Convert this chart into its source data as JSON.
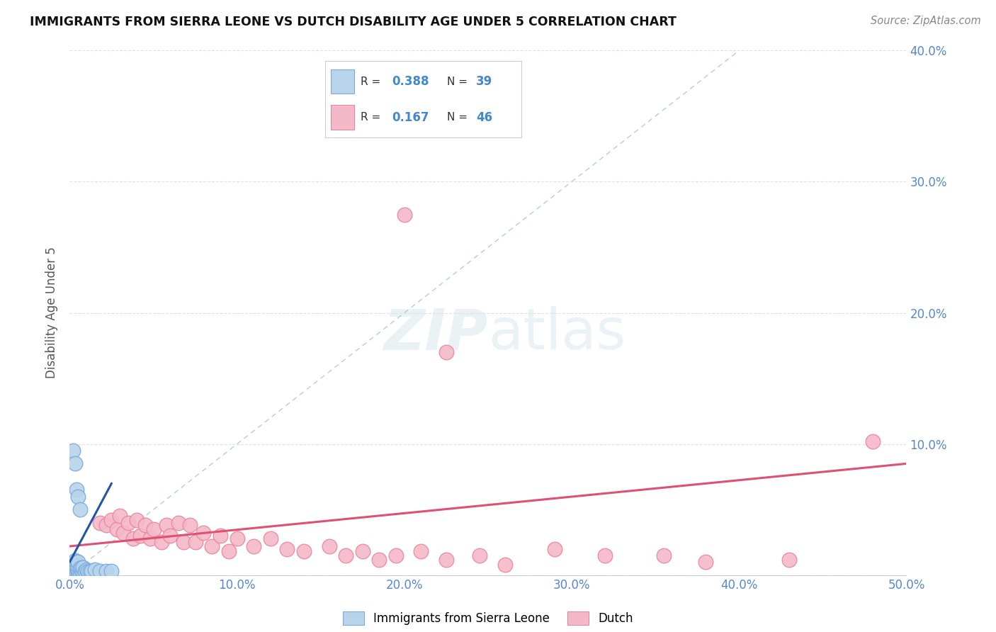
{
  "title": "IMMIGRANTS FROM SIERRA LEONE VS DUTCH DISABILITY AGE UNDER 5 CORRELATION CHART",
  "source": "Source: ZipAtlas.com",
  "ylabel": "Disability Age Under 5",
  "xlim": [
    0.0,
    0.5
  ],
  "ylim": [
    0.0,
    0.4
  ],
  "xticks": [
    0.0,
    0.1,
    0.2,
    0.3,
    0.4,
    0.5
  ],
  "yticks": [
    0.0,
    0.1,
    0.2,
    0.3,
    0.4
  ],
  "xtick_labels": [
    "0.0%",
    "10.0%",
    "20.0%",
    "30.0%",
    "40.0%",
    "50.0%"
  ],
  "ytick_labels": [
    "",
    "10.0%",
    "20.0%",
    "30.0%",
    "40.0%"
  ],
  "sierra_leone_color": "#b8d4ea",
  "dutch_color": "#f5b8c8",
  "sierra_leone_edge": "#7aabe0",
  "dutch_edge": "#e888a0",
  "trend_sierra_color": "#2255aa",
  "trend_dutch_color": "#e05070",
  "diag_color": "#b8ccd8",
  "background_color": "#ffffff",
  "grid_color": "#e0e0e0",
  "sierra_leone_x": [
    0.001,
    0.001,
    0.001,
    0.002,
    0.002,
    0.002,
    0.002,
    0.003,
    0.003,
    0.003,
    0.003,
    0.004,
    0.004,
    0.004,
    0.004,
    0.005,
    0.005,
    0.005,
    0.005,
    0.006,
    0.006,
    0.007,
    0.007,
    0.008,
    0.008,
    0.009,
    0.01,
    0.011,
    0.012,
    0.013,
    0.002,
    0.003,
    0.004,
    0.005,
    0.006,
    0.015,
    0.018,
    0.022,
    0.025
  ],
  "sierra_leone_y": [
    0.002,
    0.004,
    0.007,
    0.002,
    0.004,
    0.006,
    0.009,
    0.002,
    0.005,
    0.008,
    0.011,
    0.002,
    0.005,
    0.007,
    0.01,
    0.002,
    0.004,
    0.007,
    0.01,
    0.002,
    0.005,
    0.003,
    0.006,
    0.003,
    0.006,
    0.003,
    0.004,
    0.003,
    0.003,
    0.003,
    0.095,
    0.085,
    0.065,
    0.06,
    0.05,
    0.004,
    0.003,
    0.003,
    0.003
  ],
  "dutch_x": [
    0.018,
    0.022,
    0.025,
    0.028,
    0.03,
    0.032,
    0.035,
    0.038,
    0.04,
    0.042,
    0.045,
    0.048,
    0.05,
    0.055,
    0.058,
    0.06,
    0.065,
    0.068,
    0.072,
    0.075,
    0.08,
    0.085,
    0.09,
    0.095,
    0.1,
    0.11,
    0.12,
    0.13,
    0.14,
    0.155,
    0.165,
    0.175,
    0.185,
    0.195,
    0.21,
    0.225,
    0.245,
    0.26,
    0.29,
    0.32,
    0.355,
    0.38,
    0.43,
    0.2,
    0.225,
    0.48
  ],
  "dutch_y": [
    0.04,
    0.038,
    0.042,
    0.035,
    0.045,
    0.032,
    0.04,
    0.028,
    0.042,
    0.03,
    0.038,
    0.028,
    0.035,
    0.025,
    0.038,
    0.03,
    0.04,
    0.025,
    0.038,
    0.025,
    0.032,
    0.022,
    0.03,
    0.018,
    0.028,
    0.022,
    0.028,
    0.02,
    0.018,
    0.022,
    0.015,
    0.018,
    0.012,
    0.015,
    0.018,
    0.012,
    0.015,
    0.008,
    0.02,
    0.015,
    0.015,
    0.01,
    0.012,
    0.275,
    0.17,
    0.102
  ],
  "sierra_leone_trend_x": [
    0.0,
    0.025
  ],
  "sierra_leone_trend_y": [
    0.01,
    0.07
  ],
  "dutch_trend_x": [
    0.0,
    0.5
  ],
  "dutch_trend_y": [
    0.022,
    0.085
  ]
}
